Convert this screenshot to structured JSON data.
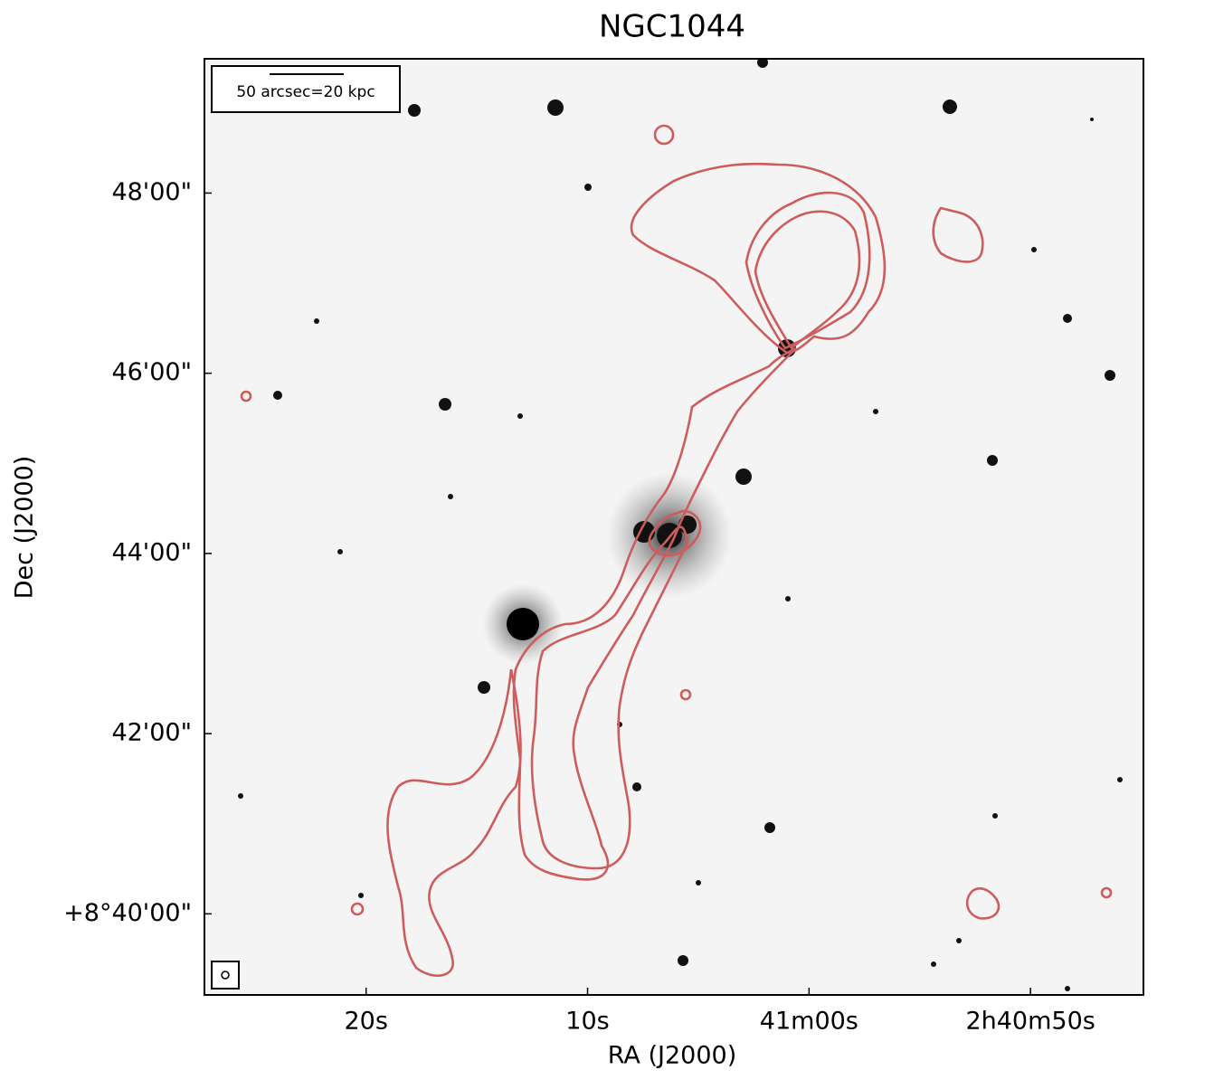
{
  "chart_data": {
    "type": "image",
    "title": "NGC1044",
    "xlabel": "RA (J2000)",
    "ylabel": "Dec (J2000)",
    "scale_bar_label": "50 arcsec=20 kpc",
    "contour_color": "#cd5c5c",
    "xlim": [
      9687.3,
      9644.9
    ],
    "xticks": [
      {
        "value": 9680,
        "label": "20s"
      },
      {
        "value": 9670,
        "label": "10s"
      },
      {
        "value": 9660,
        "label": "41m00s"
      },
      {
        "value": 9650,
        "label": "2h40m50s"
      }
    ],
    "ylim": [
      39.1,
      49.49
    ],
    "yticks": [
      {
        "value": 40,
        "label": "+8°40'00\""
      },
      {
        "value": 42,
        "label": "42'00\""
      },
      {
        "value": 44,
        "label": "44'00\""
      },
      {
        "value": 46,
        "label": "46'00\""
      },
      {
        "value": 48,
        "label": "48'00\""
      }
    ]
  }
}
